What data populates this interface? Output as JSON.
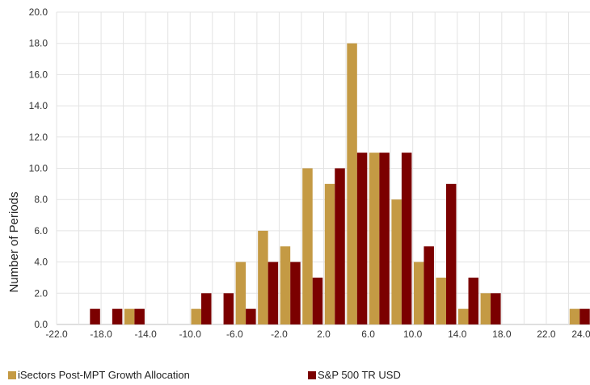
{
  "chart_data": {
    "type": "bar",
    "ylabel": "Number of Periods",
    "xlabel": "",
    "ylim": [
      0,
      20
    ],
    "y_ticks": [
      "0.0",
      "2.0",
      "4.0",
      "6.0",
      "8.0",
      "10.0",
      "12.0",
      "14.0",
      "16.0",
      "18.0",
      "20.0"
    ],
    "x_ticks": [
      "-22.0",
      "-18.0",
      "-14.0",
      "-10.0",
      "-6.0",
      "-2.0",
      "2.0",
      "6.0",
      "10.0",
      "14.0",
      "18.0",
      "22.0",
      "24.0"
    ],
    "categories": [
      -22,
      -20,
      -18,
      -16,
      -14,
      -12,
      -10,
      -8,
      -6,
      -4,
      -2,
      0,
      2,
      4,
      6,
      8,
      10,
      12,
      14,
      16,
      18,
      20,
      22,
      24
    ],
    "grid": true,
    "legend_position": "bottom",
    "series": [
      {
        "name": "iSectors Post-MPT Growth Allocation",
        "color": "#c49a44",
        "values": [
          0,
          0,
          0,
          1,
          0,
          0,
          1,
          0,
          4,
          6,
          5,
          10,
          9,
          18,
          11,
          8,
          4,
          3,
          1,
          2,
          0,
          0,
          0,
          1
        ]
      },
      {
        "name": "S&P 500 TR USD",
        "color": "#7b0000",
        "values": [
          0,
          1,
          1,
          1,
          0,
          0,
          2,
          2,
          1,
          4,
          4,
          3,
          10,
          11,
          11,
          11,
          5,
          9,
          3,
          2,
          0,
          0,
          0,
          1
        ]
      }
    ]
  }
}
